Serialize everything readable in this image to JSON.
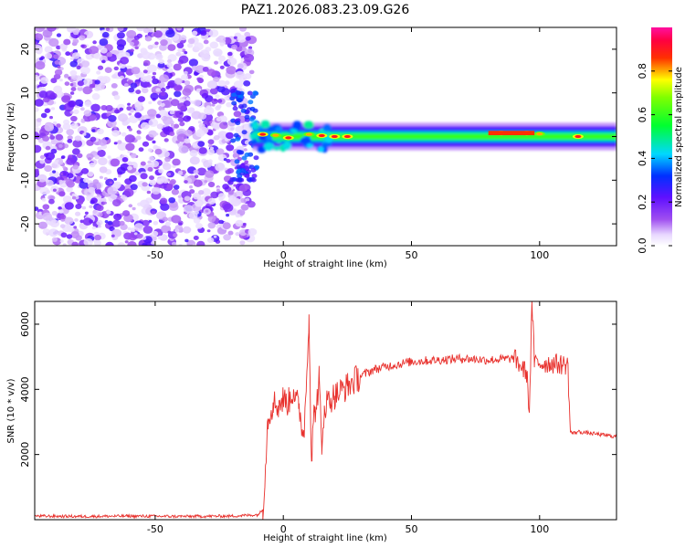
{
  "title": "PAZ1.2026.083.23.09.G26",
  "chart_data": [
    {
      "type": "heatmap",
      "title": "PAZ1.2026.083.23.09.G26",
      "xlabel": "Height of straight line (km)",
      "ylabel": "Frequency (Hz)",
      "xlim": [
        -97,
        130
      ],
      "ylim": [
        -25,
        25
      ],
      "xticks": [
        -50,
        0,
        50,
        100
      ],
      "yticks": [
        -20,
        -10,
        0,
        10,
        20
      ],
      "colorbar": {
        "label": "Normalized spectral amplitude",
        "range": [
          0.0,
          1.0
        ],
        "ticks": [
          0.0,
          0.2,
          0.4,
          0.6,
          0.8
        ],
        "tick_labels": [
          "0.0",
          "0.2",
          "0.4",
          "0.6",
          "0.8"
        ],
        "colormap": "rainbow (white-violet-blue-cyan-green-yellow-red-magenta)"
      },
      "regions": [
        {
          "x_range": [
            -97,
            -12
          ],
          "description_value": "scattered noise, amplitude 0.0-0.3"
        },
        {
          "x_range": [
            -12,
            130
          ],
          "center_frequency_hz": 0,
          "bandwidth_hz": 4
        }
      ],
      "ridge_peaks": [
        {
          "x": -8,
          "f": 0.5,
          "amp": 0.9
        },
        {
          "x": -3,
          "f": 0.3,
          "amp": 0.8
        },
        {
          "x": 2,
          "f": -0.3,
          "amp": 0.9
        },
        {
          "x": 10,
          "f": 0.5,
          "amp": 0.8
        },
        {
          "x": 15,
          "f": 0.2,
          "amp": 0.9
        },
        {
          "x": 20,
          "f": 0,
          "amp": 0.9
        },
        {
          "x": 25,
          "f": 0,
          "amp": 0.9
        },
        {
          "x": 85,
          "f": 0.8,
          "amp": 0.9
        },
        {
          "x": 95,
          "f": 0.8,
          "amp": 0.9
        },
        {
          "x": 100,
          "f": 0.6,
          "amp": 0.8
        },
        {
          "x": 115,
          "f": 0,
          "amp": 0.9
        }
      ]
    },
    {
      "type": "line",
      "xlabel": "Height of straight line (km)",
      "ylabel": "SNR (10 * v/v)",
      "xlim": [
        -97,
        130
      ],
      "ylim": [
        0,
        6700
      ],
      "xticks": [
        -50,
        0,
        50,
        100
      ],
      "yticks": [
        2000,
        4000,
        6000
      ],
      "color": "#e8302c",
      "series": [
        {
          "x": [
            -97,
            -80,
            -60,
            -40,
            -20,
            -10,
            -8,
            -6,
            -4,
            -2,
            0,
            2,
            4,
            6,
            8,
            9,
            10,
            11,
            12,
            13,
            14,
            15,
            16,
            18,
            20,
            25,
            30,
            35,
            40,
            50,
            60,
            70,
            80,
            90,
            95,
            96,
            97,
            98,
            100,
            105,
            110,
            111,
            112,
            113,
            115,
            120,
            125,
            130
          ],
          "y": [
            110,
            100,
            110,
            100,
            110,
            150,
            300,
            3100,
            3600,
            3500,
            3700,
            3600,
            4000,
            3400,
            2600,
            4200,
            6300,
            1800,
            3300,
            3500,
            4400,
            2000,
            3500,
            3700,
            3800,
            4100,
            4400,
            4600,
            4700,
            4850,
            4900,
            4950,
            4900,
            4950,
            4500,
            3300,
            6700,
            4800,
            4800,
            4800,
            4750,
            4800,
            2700,
            2650,
            2700,
            2650,
            2600,
            2550
          ]
        }
      ]
    }
  ]
}
